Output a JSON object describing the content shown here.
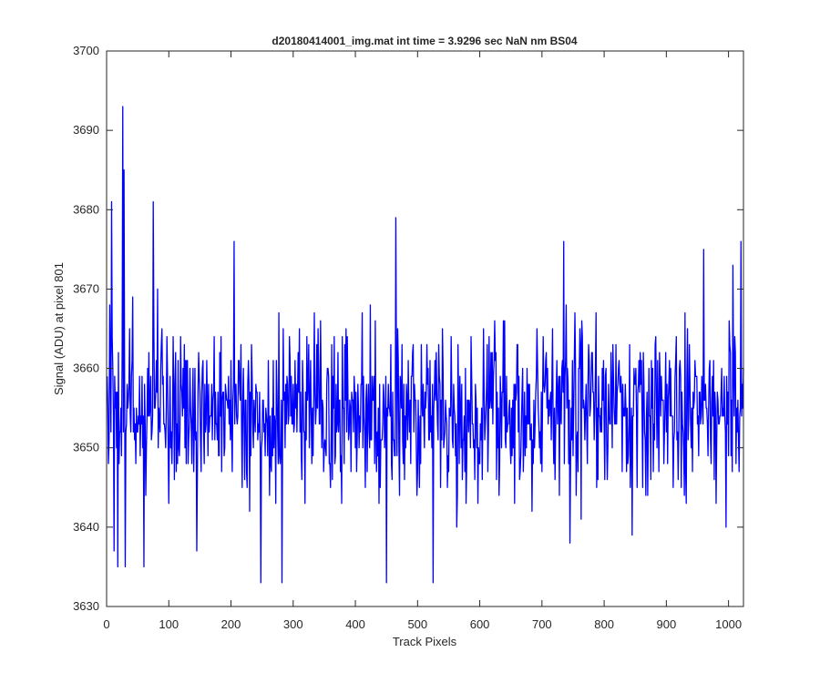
{
  "chart_data": {
    "type": "line",
    "title": "d20180414001_img.mat int time = 3.9296 sec  NaN nm BS04",
    "xlabel": "Track Pixels",
    "ylabel": "Signal (ADU) at pixel 801",
    "xlim": [
      0,
      1024
    ],
    "ylim": [
      3630,
      3700
    ],
    "xticks": [
      0,
      100,
      200,
      300,
      400,
      500,
      600,
      700,
      800,
      900,
      1000
    ],
    "yticks": [
      3630,
      3640,
      3650,
      3660,
      3670,
      3680,
      3690,
      3700
    ],
    "grid": false,
    "legend": "none",
    "line_color": "#0000ff",
    "series": [
      {
        "n_points": 1024,
        "x_start": 1,
        "x_step": 1,
        "mean": 3655,
        "std": 5.3,
        "y_min": 3633,
        "y_max": 3693,
        "notable_points": [
          {
            "x": 3,
            "y": 3648
          },
          {
            "x": 5,
            "y": 3668
          },
          {
            "x": 8,
            "y": 3681
          },
          {
            "x": 12,
            "y": 3637
          },
          {
            "x": 18,
            "y": 3635
          },
          {
            "x": 26,
            "y": 3693
          },
          {
            "x": 28,
            "y": 3685
          },
          {
            "x": 30,
            "y": 3635
          },
          {
            "x": 60,
            "y": 3635
          },
          {
            "x": 75,
            "y": 3681
          },
          {
            "x": 145,
            "y": 3637
          },
          {
            "x": 205,
            "y": 3676
          },
          {
            "x": 248,
            "y": 3633
          },
          {
            "x": 282,
            "y": 3633
          },
          {
            "x": 450,
            "y": 3633
          },
          {
            "x": 465,
            "y": 3679
          },
          {
            "x": 525,
            "y": 3633
          },
          {
            "x": 735,
            "y": 3676
          },
          {
            "x": 745,
            "y": 3638
          },
          {
            "x": 960,
            "y": 3675
          },
          {
            "x": 1020,
            "y": 3676
          }
        ]
      }
    ]
  }
}
